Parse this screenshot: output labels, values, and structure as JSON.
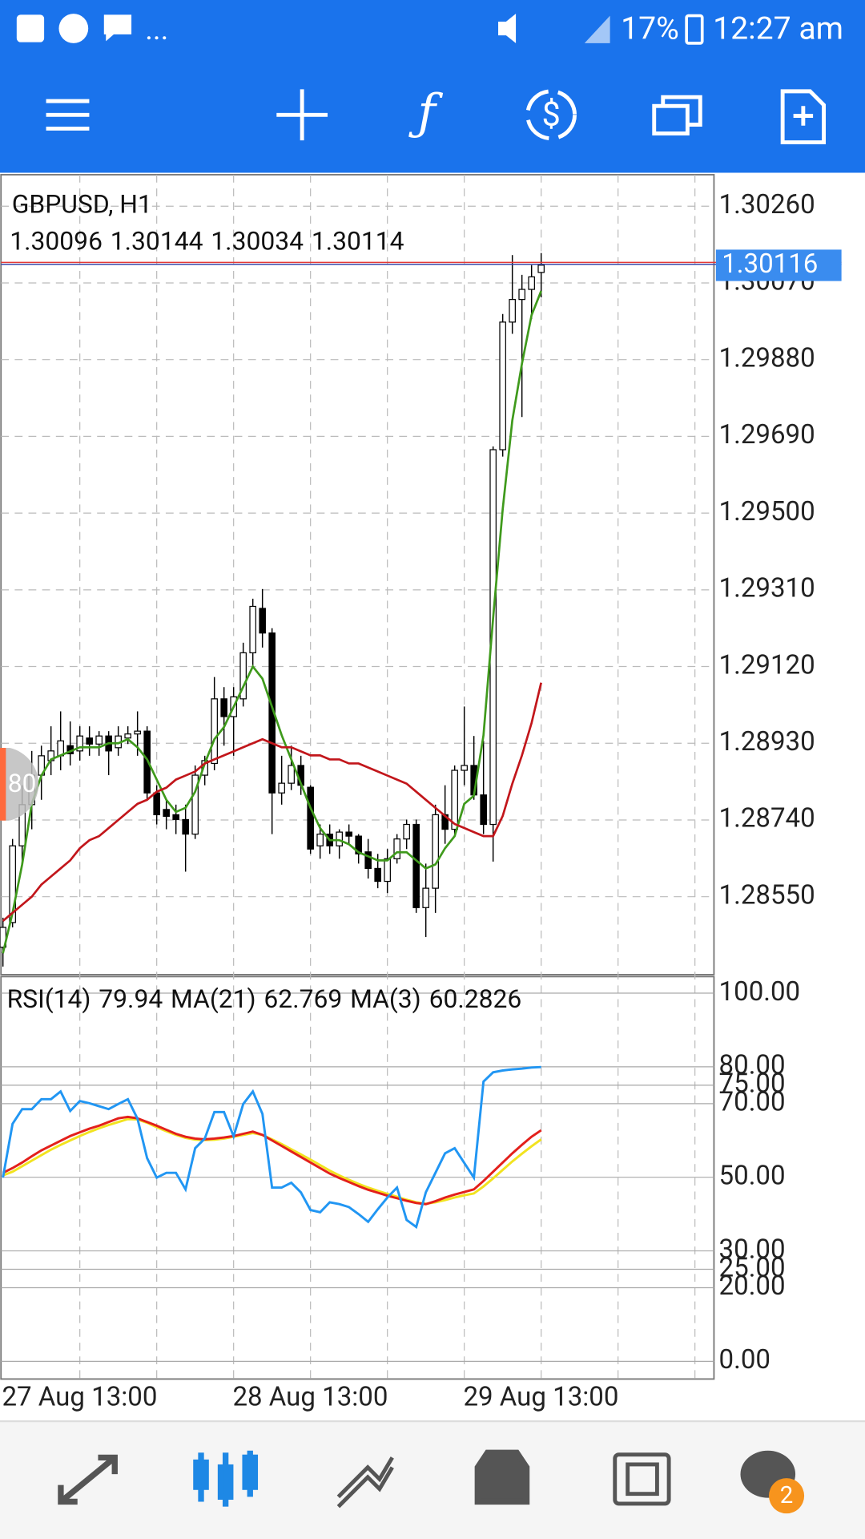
{
  "status_bar": {
    "ellipsis": "...",
    "battery": "17%",
    "time": "12:27 am"
  },
  "side_badge": "80",
  "nav_badge": "2",
  "chart_data": [
    {
      "type": "candlestick",
      "title": "GBPUSD, H1",
      "header_ohlc": [
        1.30096,
        1.30144,
        1.30034,
        1.30114
      ],
      "categories": [
        "27 Aug 13:00",
        null,
        null,
        null,
        null,
        null,
        null,
        null,
        null,
        null,
        null,
        null,
        null,
        null,
        null,
        null,
        null,
        null,
        null,
        null,
        null,
        null,
        null,
        null,
        "28 Aug 13:00",
        null,
        null,
        null,
        null,
        null,
        null,
        null,
        null,
        null,
        null,
        null,
        null,
        null,
        null,
        null,
        null,
        null,
        null,
        null,
        null,
        null,
        null,
        null,
        "29 Aug 13:00",
        null,
        null,
        null,
        null,
        null,
        null,
        null,
        null
      ],
      "open": [
        1.28425,
        1.28486,
        1.28676,
        1.28778,
        1.28851,
        1.28887,
        1.28899,
        1.28924,
        1.28911,
        1.28943,
        1.28928,
        1.28948,
        1.28919,
        1.28943,
        1.28953,
        1.2896,
        1.28807,
        1.28766,
        1.28753,
        1.28741,
        1.28705,
        1.28851,
        1.2888,
        1.2904,
        1.28996,
        1.2904,
        1.29154,
        1.29264,
        1.29203,
        1.28807,
        1.28831,
        1.28875,
        1.28821,
        1.28676,
        1.28705,
        1.28676,
        1.2871,
        1.287,
        1.28661,
        1.2862,
        1.28588,
        1.28644,
        1.28693,
        1.28729,
        1.28523,
        1.28571,
        1.28753,
        1.28717,
        1.28863,
        1.28875,
        1.28802,
        1.28729,
        1.29657,
        1.29973,
        1.30029,
        1.30054,
        1.30096
      ],
      "high": [
        1.28498,
        1.28693,
        1.28826,
        1.28911,
        1.28924,
        1.28972,
        1.29009,
        1.28984,
        1.28972,
        1.28972,
        1.2896,
        1.2896,
        1.28972,
        1.28972,
        1.29009,
        1.28972,
        1.28826,
        1.2879,
        1.28778,
        1.28778,
        1.28875,
        1.28899,
        1.29094,
        1.29069,
        1.29069,
        1.29179,
        1.29288,
        1.29312,
        1.29215,
        1.28899,
        1.28924,
        1.28899,
        1.28826,
        1.28729,
        1.28729,
        1.28717,
        1.28729,
        1.28705,
        1.28693,
        1.28656,
        1.28668,
        1.28705,
        1.28741,
        1.28741,
        1.28632,
        1.28778,
        1.28826,
        1.28875,
        1.29021,
        1.28948,
        1.28936,
        1.29665,
        1.29993,
        1.30139,
        1.3009,
        1.30114,
        1.30144
      ],
      "low": [
        1.28377,
        1.28474,
        1.28632,
        1.28717,
        1.2879,
        1.28851,
        1.28863,
        1.28875,
        1.28887,
        1.28899,
        1.28899,
        1.28851,
        1.28899,
        1.28928,
        1.28899,
        1.2879,
        1.28729,
        1.28717,
        1.28705,
        1.28612,
        1.28693,
        1.28826,
        1.28863,
        1.28924,
        1.28899,
        1.29021,
        1.29118,
        1.29167,
        1.28705,
        1.28778,
        1.28814,
        1.28802,
        1.28656,
        1.28644,
        1.28656,
        1.28644,
        1.28681,
        1.28632,
        1.28595,
        1.28571,
        1.28559,
        1.28632,
        1.28668,
        1.2851,
        1.2845,
        1.2851,
        1.28681,
        1.28705,
        1.28826,
        1.2879,
        1.28705,
        1.28637,
        1.2964,
        1.29944,
        1.29738,
        1.29981,
        1.30034
      ],
      "close": [
        1.28474,
        1.28676,
        1.28778,
        1.28851,
        1.28899,
        1.28911,
        1.28936,
        1.28904,
        1.28948,
        1.28928,
        1.28948,
        1.28911,
        1.28948,
        1.28953,
        1.2896,
        1.28807,
        1.28753,
        1.28749,
        1.28741,
        1.28705,
        1.28851,
        1.28887,
        1.2904,
        1.28996,
        1.29045,
        1.29154,
        1.29269,
        1.29203,
        1.28807,
        1.28831,
        1.28875,
        1.28826,
        1.28668,
        1.28705,
        1.28676,
        1.2871,
        1.287,
        1.28656,
        1.2862,
        1.28588,
        1.28644,
        1.28693,
        1.28729,
        1.28523,
        1.28571,
        1.28753,
        1.28717,
        1.28863,
        1.28875,
        1.28802,
        1.28729,
        1.29657,
        1.29973,
        1.30029,
        1.30054,
        1.30085,
        1.30114
      ],
      "bull_color": "#ffffff",
      "bear_color": "#000000",
      "moving_averages": [
        {
          "color": "#3f9a1c",
          "values": [
            1.2841,
            1.2851,
            1.2863,
            1.2878,
            1.2885,
            1.2889,
            1.289,
            1.2891,
            1.2892,
            1.2892,
            1.2892,
            1.2893,
            1.2893,
            1.2894,
            1.2892,
            1.2889,
            1.2884,
            1.2879,
            1.2876,
            1.2877,
            1.2881,
            1.2888,
            1.2894,
            1.2897,
            1.2902,
            1.2907,
            1.2912,
            1.2909,
            1.2902,
            1.2895,
            1.2889,
            1.2883,
            1.2877,
            1.2872,
            1.2869,
            1.2869,
            1.2868,
            1.2866,
            1.2865,
            1.2864,
            1.2864,
            1.2866,
            1.2866,
            1.2864,
            1.2862,
            1.2863,
            1.2867,
            1.287,
            1.2878,
            1.288,
            1.2895,
            1.2924,
            1.2951,
            1.2973,
            1.2987,
            1.2999,
            1.3005
          ]
        },
        {
          "color": "#c2161b",
          "values": [
            1.2849,
            1.2851,
            1.2853,
            1.2855,
            1.2858,
            1.286,
            1.2862,
            1.2864,
            1.2867,
            1.2869,
            1.287,
            1.2872,
            1.2874,
            1.2876,
            1.2878,
            1.2879,
            1.2881,
            1.2882,
            1.2884,
            1.2885,
            1.2886,
            1.2888,
            1.2889,
            1.289,
            1.2891,
            1.2892,
            1.2893,
            1.2894,
            1.2893,
            1.2892,
            1.2892,
            1.2891,
            1.289,
            1.289,
            1.2889,
            1.2889,
            1.2888,
            1.2888,
            1.2887,
            1.2886,
            1.2885,
            1.2884,
            1.2883,
            1.2881,
            1.2879,
            1.2877,
            1.2875,
            1.2873,
            1.2872,
            1.2871,
            1.287,
            1.287,
            1.2875,
            1.2883,
            1.289,
            1.2898,
            1.2908
          ]
        }
      ],
      "current_price": 1.30116,
      "ylim": [
        1.28357,
        1.30338
      ],
      "yticks": [
        {
          "value": 1.3026,
          "label": "1.30260"
        },
        {
          "value": 1.3007,
          "label": "1.30070"
        },
        {
          "value": 1.2988,
          "label": "1.29880"
        },
        {
          "value": 1.2969,
          "label": "1.29690"
        },
        {
          "value": 1.295,
          "label": "1.29500"
        },
        {
          "value": 1.2931,
          "label": "1.29310"
        },
        {
          "value": 1.2912,
          "label": "1.29120"
        },
        {
          "value": 1.2893,
          "label": "1.28930"
        },
        {
          "value": 1.2874,
          "label": "1.28740"
        },
        {
          "value": 1.2855,
          "label": "1.28550"
        }
      ],
      "grid": true
    },
    {
      "type": "line",
      "series": [
        {
          "name": "RSI(14)",
          "current": 79.94,
          "color": "#2196f3",
          "values": [
            49.9,
            64.5,
            68.5,
            68.5,
            71.2,
            71.2,
            73.3,
            68.0,
            70.7,
            70.1,
            69.3,
            68.5,
            69.9,
            71.2,
            65.9,
            55.2,
            49.9,
            51.2,
            51.2,
            46.7,
            57.9,
            60.5,
            67.7,
            67.7,
            61.1,
            69.9,
            73.3,
            67.2,
            47.2,
            47.2,
            48.5,
            45.9,
            41.1,
            40.5,
            43.2,
            42.7,
            41.9,
            40.0,
            37.9,
            41.3,
            44.5,
            47.2,
            38.4,
            36.5,
            45.9,
            51.2,
            56.5,
            57.9,
            53.9,
            49.9,
            76.0,
            78.5,
            79.0,
            79.3,
            79.5,
            79.8,
            79.94
          ]
        },
        {
          "name": "MA(21)",
          "current": 62.769,
          "color": "#e3201b",
          "values": [
            51.2,
            52.5,
            54,
            55.7,
            57.3,
            58.6,
            59.9,
            61.2,
            62.2,
            63.2,
            64.0,
            65.0,
            66.0,
            66.4,
            66.0,
            65.0,
            64.0,
            62.9,
            61.8,
            61.0,
            60.5,
            60.3,
            60.5,
            60.8,
            61.2,
            61.8,
            62.4,
            61.5,
            60.0,
            58.5,
            57.0,
            55.5,
            54.0,
            52.5,
            51.0,
            49.8,
            48.7,
            47.6,
            46.6,
            45.8,
            45.0,
            44.3,
            43.6,
            43.0,
            42.7,
            43.5,
            44.5,
            45.3,
            46.0,
            46.7,
            49.0,
            51.5,
            54.0,
            56.5,
            58.8,
            61.0,
            62.769
          ]
        },
        {
          "name": "MA(3)",
          "current": 60.2826,
          "color": "#f2e31f",
          "values": [
            50.5,
            51.5,
            53,
            54.5,
            56,
            57.5,
            58.8,
            60,
            61.2,
            62.3,
            63.3,
            64.2,
            65,
            65.8,
            65.7,
            64.8,
            63.6,
            62.5,
            61.5,
            60.7,
            60.2,
            60.1,
            60.2,
            60.5,
            61,
            61.5,
            62,
            61.5,
            60.3,
            59,
            57.6,
            56.2,
            54.8,
            53.3,
            51.8,
            50.5,
            49.3,
            48.2,
            47.2,
            46.3,
            45.5,
            44.7,
            43.9,
            43.2,
            42.8,
            43.2,
            43.8,
            44.5,
            45.1,
            45.6,
            47.5,
            49.7,
            52,
            54.3,
            56.4,
            58.4,
            60.2826
          ]
        }
      ],
      "ylim": [
        -4.8,
        104.5
      ],
      "yticks": [
        {
          "value": 100,
          "label": "100.00"
        },
        {
          "value": 80,
          "label": "80.00"
        },
        {
          "value": 75,
          "label": "75.00"
        },
        {
          "value": 70,
          "label": "70.00"
        },
        {
          "value": 50,
          "label": "50.00"
        },
        {
          "value": 30,
          "label": "30.00"
        },
        {
          "value": 25,
          "label": "25.00"
        },
        {
          "value": 20,
          "label": "20.00"
        },
        {
          "value": 0,
          "label": "0.00"
        }
      ],
      "grid": true
    }
  ]
}
